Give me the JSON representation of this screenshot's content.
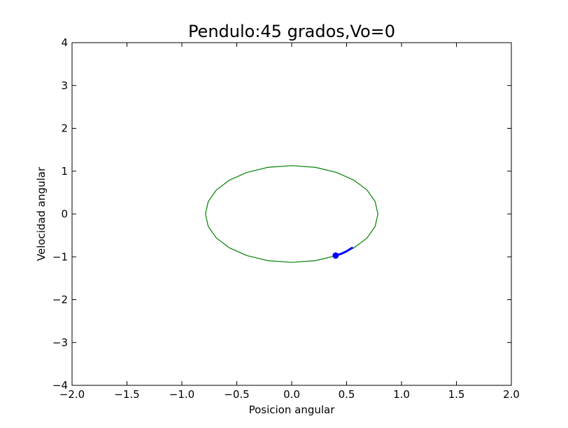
{
  "chart_data": {
    "type": "line",
    "title": "Pendulo:45 grados,Vo=0",
    "xlabel": "Posicion angular",
    "ylabel": "Velocidad angular",
    "xlim": [
      -2.0,
      2.0
    ],
    "ylim": [
      -4,
      4
    ],
    "grid": false,
    "legend": "none",
    "xticks": [
      {
        "value": -2.0,
        "label": "−2.0"
      },
      {
        "value": -1.5,
        "label": "−1.5"
      },
      {
        "value": -1.0,
        "label": "−1.0"
      },
      {
        "value": -0.5,
        "label": "−0.5"
      },
      {
        "value": 0.0,
        "label": "0.0"
      },
      {
        "value": 0.5,
        "label": "0.5"
      },
      {
        "value": 1.0,
        "label": "1.0"
      },
      {
        "value": 1.5,
        "label": "1.5"
      },
      {
        "value": 2.0,
        "label": "2.0"
      }
    ],
    "yticks": [
      {
        "value": -4,
        "label": "−4"
      },
      {
        "value": -3,
        "label": "−3"
      },
      {
        "value": -2,
        "label": "−2"
      },
      {
        "value": -1,
        "label": "−1"
      },
      {
        "value": 0,
        "label": "0"
      },
      {
        "value": 1,
        "label": "1"
      },
      {
        "value": 2,
        "label": "2"
      },
      {
        "value": 3,
        "label": "3"
      },
      {
        "value": 4,
        "label": "4"
      }
    ],
    "series": [
      {
        "kind": "orbit",
        "color": "#008000",
        "x": [
          0.785,
          0.76,
          0.686,
          0.567,
          0.408,
          0.215,
          0.0,
          -0.215,
          -0.408,
          -0.567,
          -0.686,
          -0.76,
          -0.785,
          -0.76,
          -0.686,
          -0.567,
          -0.408,
          -0.215,
          0.0,
          0.215,
          0.408,
          0.567,
          0.686,
          0.76,
          0.785
        ],
        "y": [
          0.0,
          0.29,
          0.56,
          0.79,
          0.97,
          1.09,
          1.13,
          1.09,
          0.97,
          0.79,
          0.56,
          0.29,
          0.0,
          -0.29,
          -0.56,
          -0.79,
          -0.97,
          -1.09,
          -1.13,
          -1.09,
          -0.97,
          -0.79,
          -0.56,
          -0.29,
          0.0
        ]
      },
      {
        "kind": "trail",
        "color": "#0000ff",
        "x": [
          0.55,
          0.5,
          0.45,
          0.4
        ],
        "y": [
          -0.79,
          -0.87,
          -0.93,
          -0.97
        ]
      },
      {
        "kind": "current-point",
        "color": "#0000ff",
        "x": [
          0.4
        ],
        "y": [
          -0.97
        ]
      }
    ]
  }
}
